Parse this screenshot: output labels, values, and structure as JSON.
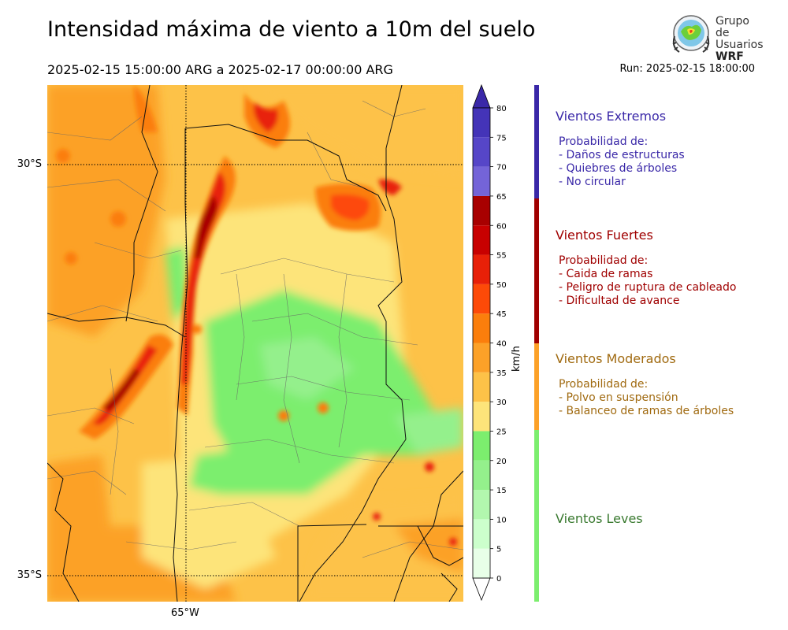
{
  "header": {
    "title": "Intensidad máxima de viento a 10m del suelo",
    "subtitle": "2025-02-15 15:00:00 ARG  a  2025-02-17 00:00:00 ARG",
    "run": "Run: 2025-02-15 18:00:00"
  },
  "logo": {
    "line1": "Grupo de",
    "line2": "Usuarios",
    "line3": "WRF"
  },
  "map": {
    "lat_labels": [
      "30°S",
      "35°S"
    ],
    "lon_labels": [
      "65°W"
    ]
  },
  "colorbar": {
    "unit": "km/h",
    "ticks": [
      "0",
      "5",
      "10",
      "15",
      "20",
      "25",
      "30",
      "35",
      "40",
      "45",
      "50",
      "55",
      "60",
      "65",
      "70",
      "75",
      "80"
    ],
    "colors": [
      "#e8ffe8",
      "#ccffcc",
      "#b2f7ae",
      "#94f08c",
      "#7cee6e",
      "#fde47a",
      "#fdc248",
      "#fca128",
      "#fb7e0c",
      "#fd4a08",
      "#e82008",
      "#c80000",
      "#a80000",
      "#7464d8",
      "#5646c8",
      "#4434b8",
      "#3a28a8"
    ]
  },
  "categories": [
    {
      "title": "Vientos Extremos",
      "lines": [
        "Probabilidad de:",
        "- Daños de estructuras",
        "- Quiebres de árboles",
        "- No circular"
      ],
      "color": "#3a28a8"
    },
    {
      "title": "Vientos Fuertes",
      "lines": [
        "Probabilidad de:",
        "- Caida de ramas",
        "- Peligro de ruptura de cableado",
        "- Dificultad de avance"
      ],
      "color": "#a00000"
    },
    {
      "title": "Vientos Moderados",
      "lines": [
        "Probabilidad de:",
        "- Polvo en suspensión",
        "- Balanceo de ramas de árboles"
      ],
      "color": "#a06a10",
      "bar_color": "#fca128"
    },
    {
      "title": "Vientos Leves",
      "lines": [],
      "color": "#3a7a30",
      "bar_color": "#7cee6e"
    }
  ]
}
